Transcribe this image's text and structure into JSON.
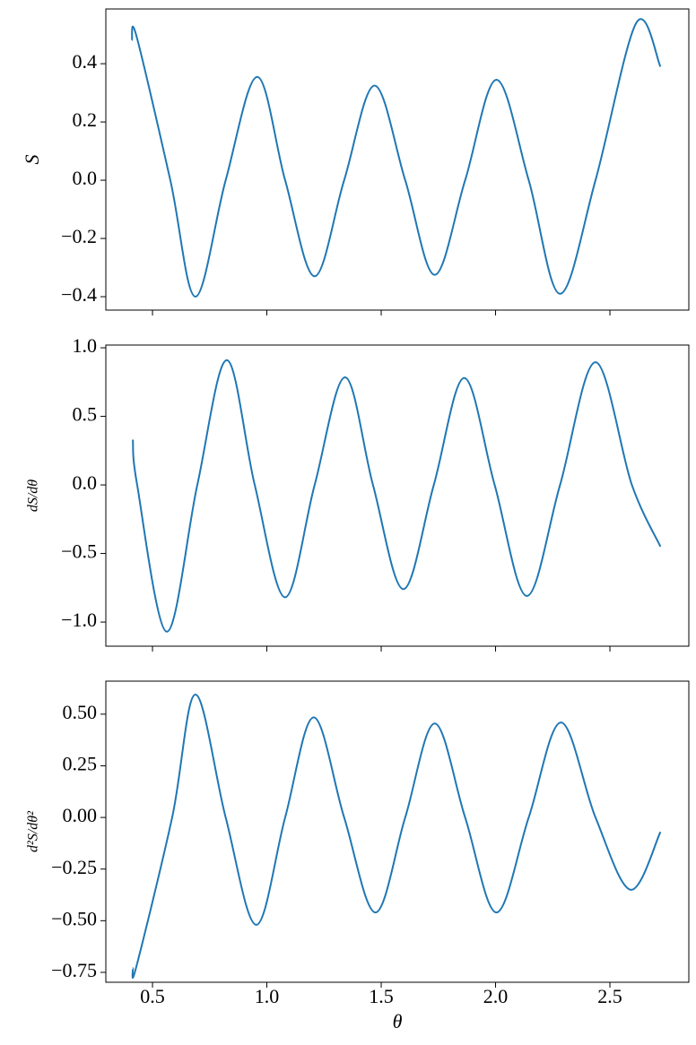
{
  "chart_data": [
    {
      "type": "line",
      "ylabel": "S",
      "color": "#1f77b4",
      "x": [
        0.41,
        0.43,
        0.578,
        0.688,
        0.82,
        0.958,
        1.08,
        1.209,
        1.338,
        1.471,
        1.605,
        1.734,
        1.867,
        2.004,
        2.145,
        2.282,
        2.437,
        2.615,
        2.721
      ],
      "values": [
        0.48,
        0.495,
        0.0,
        -0.4,
        0.0,
        0.355,
        0.0,
        -0.33,
        0.0,
        0.325,
        0.0,
        -0.325,
        0.0,
        0.345,
        0.0,
        -0.39,
        0.0,
        0.54,
        0.39
      ],
      "xlim": [
        0.296,
        2.845
      ],
      "xticks": [
        0.5,
        1,
        1.5,
        2,
        2.5
      ],
      "ylim": [
        -0.446,
        0.588
      ],
      "yticks": [
        {
          "value": -0.4,
          "label": "−0.4"
        },
        {
          "value": -0.2,
          "label": "−0.2"
        },
        {
          "value": 0,
          "label": "0.0"
        },
        0.2,
        0.4
      ]
    },
    {
      "type": "line",
      "ylabel": "dS/dθ",
      "color": "#1f77b4",
      "x": [
        0.414,
        0.433,
        0.563,
        0.696,
        0.825,
        0.947,
        1.08,
        1.209,
        1.342,
        1.464,
        1.597,
        1.73,
        1.863,
        1.996,
        2.137,
        2.282,
        2.437,
        2.596,
        2.721
      ],
      "values": [
        0.33,
        0.0,
        -1.07,
        0.0,
        0.91,
        0.0,
        -0.82,
        0.0,
        0.785,
        0.0,
        -0.76,
        0.0,
        0.78,
        0.0,
        -0.81,
        0.0,
        0.895,
        0.0,
        -0.45
      ],
      "xlim": [
        0.296,
        2.845
      ],
      "xticks": [
        0.5,
        1,
        1.5,
        2,
        2.5
      ],
      "ylim": [
        -1.176,
        1.02
      ],
      "yticks": [
        {
          "value": -1,
          "label": "−1.0"
        },
        {
          "value": -0.5,
          "label": "−0.5"
        },
        {
          "value": 0,
          "label": "0.0"
        },
        0.5,
        {
          "value": 1,
          "label": "1.0"
        }
      ]
    },
    {
      "type": "line",
      "ylabel": "d²S/dθ²",
      "xlabel": "θ",
      "color": "#1f77b4",
      "x": [
        0.414,
        0.43,
        0.586,
        0.688,
        0.82,
        0.954,
        1.08,
        1.205,
        1.338,
        1.475,
        1.605,
        1.734,
        1.867,
        2.004,
        2.145,
        2.286,
        2.437,
        2.59,
        2.721
      ],
      "values": [
        -0.73,
        -0.72,
        0.0,
        0.595,
        0.0,
        -0.52,
        0.0,
        0.485,
        0.0,
        -0.46,
        0.0,
        0.455,
        0.0,
        -0.46,
        0.0,
        0.46,
        0.0,
        -0.35,
        -0.07
      ],
      "xlim": [
        0.296,
        2.845
      ],
      "xticks": [
        0.5,
        {
          "value": 1,
          "label": "1.0"
        },
        1.5,
        {
          "value": 2,
          "label": "2.0"
        },
        2.5
      ],
      "ylim": [
        -0.798,
        0.66
      ],
      "yticks": [
        {
          "value": -0.75,
          "label": "−0.75"
        },
        {
          "value": -0.5,
          "label": "−0.50"
        },
        {
          "value": -0.25,
          "label": "−0.25"
        },
        {
          "value": 0,
          "label": "0.00"
        },
        {
          "value": 0.25,
          "label": "0.25"
        },
        {
          "value": 0.5,
          "label": "0.50"
        }
      ]
    }
  ]
}
